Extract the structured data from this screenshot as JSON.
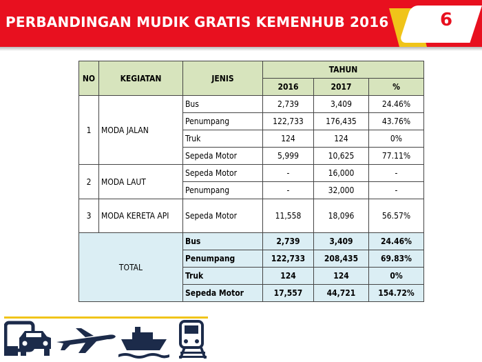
{
  "header": {
    "title": "PERBANDINGAN MUDIK GRATIS KEMENHUB 2016 & 2017",
    "page_number": "6",
    "bg_color": "#e8101f",
    "accent_color": "#f0c419"
  },
  "table": {
    "headers": {
      "no": "NO",
      "kegiatan": "KEGIATAN",
      "jenis": "JENIS",
      "tahun": "TAHUN",
      "y2016": "2016",
      "y2017": "2017",
      "pct": "%"
    },
    "groups": [
      {
        "no": "1",
        "kegiatan": "MODA JALAN",
        "rows": [
          {
            "jenis": "Bus",
            "y2016": "2,739",
            "y2017": "3,409",
            "pct": "24.46%"
          },
          {
            "jenis": "Penumpang",
            "y2016": "122,733",
            "y2017": "176,435",
            "pct": "43.76%"
          },
          {
            "jenis": "Truk",
            "y2016": "124",
            "y2017": "124",
            "pct": "0%"
          },
          {
            "jenis": "Sepeda Motor",
            "y2016": "5,999",
            "y2017": "10,625",
            "pct": "77.11%"
          }
        ]
      },
      {
        "no": "2",
        "kegiatan": "MODA LAUT",
        "rows": [
          {
            "jenis": "Sepeda Motor",
            "y2016": "-",
            "y2017": "16,000",
            "pct": "-"
          },
          {
            "jenis": "Penumpang",
            "y2016": "-",
            "y2017": "32,000",
            "pct": "-"
          }
        ]
      },
      {
        "no": "3",
        "kegiatan": "MODA KERETA API",
        "rows": [
          {
            "jenis": "Sepeda Motor",
            "y2016": "11,558",
            "y2017": "18,096",
            "pct": "56.57%"
          }
        ]
      }
    ],
    "total": {
      "label": "TOTAL",
      "rows": [
        {
          "jenis": "Bus",
          "y2016": "2,739",
          "y2017": "3,409",
          "pct": "24.46%"
        },
        {
          "jenis": "Penumpang",
          "y2016": "122,733",
          "y2017": "208,435",
          "pct": "69.83%"
        },
        {
          "jenis": "Truk",
          "y2016": "124",
          "y2017": "124",
          "pct": "0%"
        },
        {
          "jenis": "Sepeda Motor",
          "y2016": "17,557",
          "y2017": "44,721",
          "pct": "154.72%"
        }
      ]
    },
    "colors": {
      "header_bg": "#d7e4bd",
      "total_bg": "#dbeef4"
    }
  },
  "footer_icons": [
    "bus-car-icon",
    "airplane-icon",
    "ship-icon",
    "train-icon"
  ]
}
